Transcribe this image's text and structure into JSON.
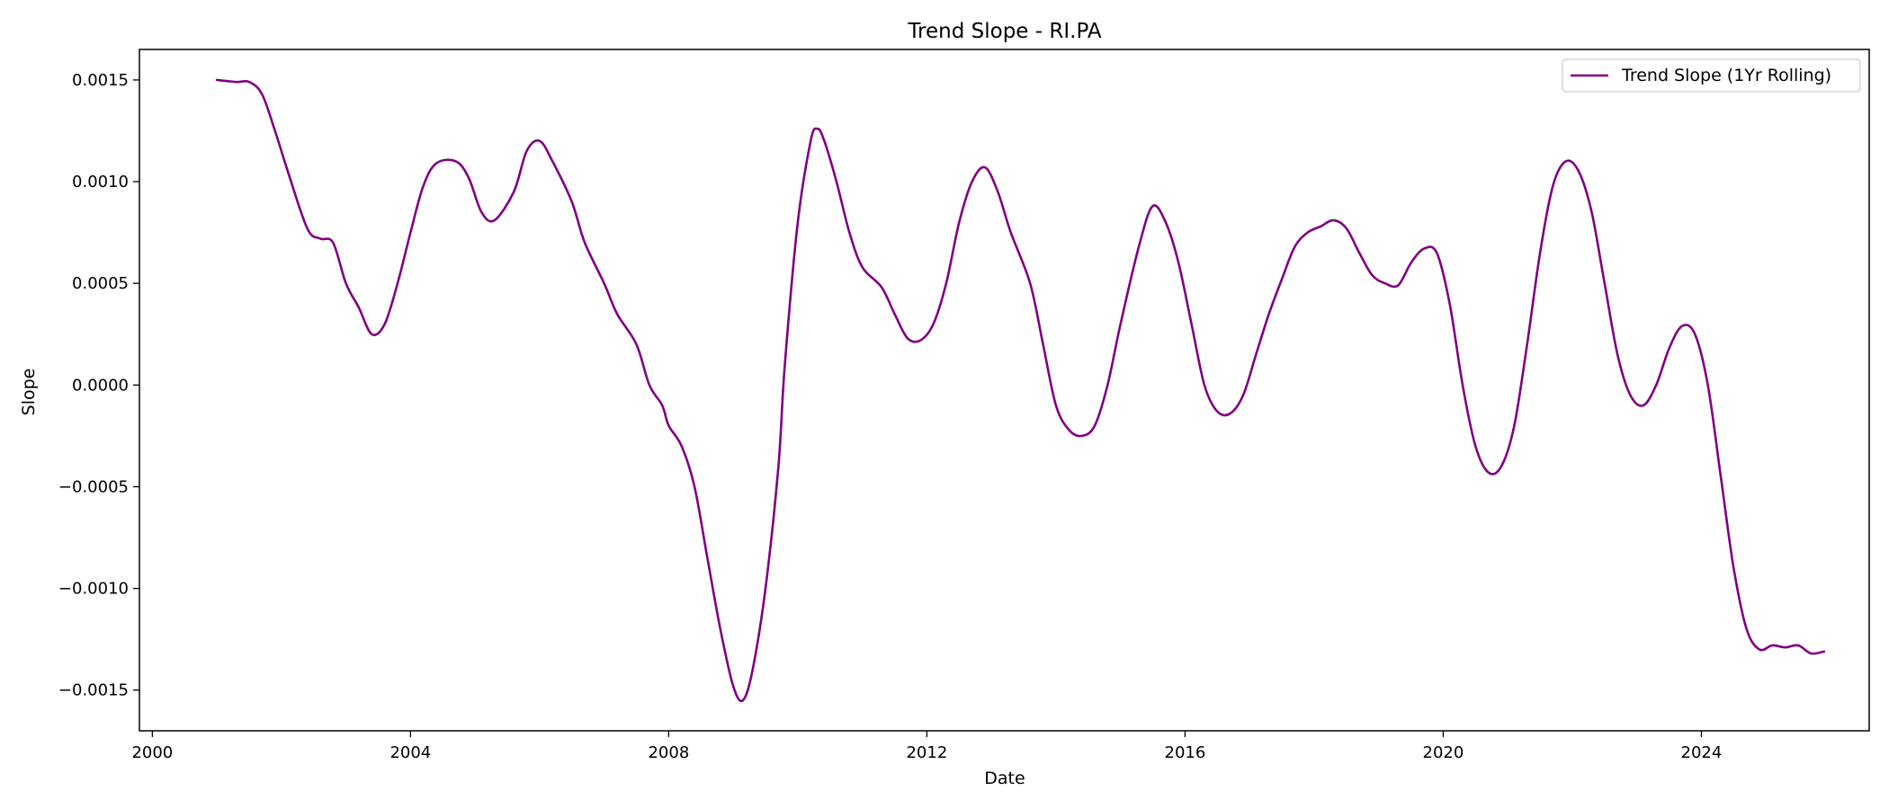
{
  "chart_data": {
    "type": "line",
    "title": "Trend Slope - RI.PA",
    "xlabel": "Date",
    "ylabel": "Slope",
    "xlim": [
      1999.8,
      2026.6
    ],
    "ylim": [
      -0.0017,
      0.00165
    ],
    "x_ticks": [
      {
        "value": 2000,
        "label": "2000"
      },
      {
        "value": 2004,
        "label": "2004"
      },
      {
        "value": 2008,
        "label": "2008"
      },
      {
        "value": 2012,
        "label": "2012"
      },
      {
        "value": 2016,
        "label": "2016"
      },
      {
        "value": 2020,
        "label": "2020"
      },
      {
        "value": 2024,
        "label": "2024"
      }
    ],
    "y_ticks": [
      {
        "value": 0.0015,
        "label": "0.0015"
      },
      {
        "value": 0.001,
        "label": "0.0010"
      },
      {
        "value": 0.0005,
        "label": "0.0005"
      },
      {
        "value": 0.0,
        "label": "0.0000"
      },
      {
        "value": -0.0005,
        "label": "−0.0005"
      },
      {
        "value": -0.001,
        "label": "−0.0010"
      },
      {
        "value": -0.0015,
        "label": "−0.0015"
      }
    ],
    "grid": false,
    "legend_position": "top-right",
    "series": [
      {
        "name": "Trend Slope (1Yr Rolling)",
        "color": "#800080",
        "points": [
          [
            2001.0,
            0.0015
          ],
          [
            2001.3,
            0.00149
          ],
          [
            2001.5,
            0.00149
          ],
          [
            2001.7,
            0.00143
          ],
          [
            2001.9,
            0.00125
          ],
          [
            2002.1,
            0.00105
          ],
          [
            2002.4,
            0.00077
          ],
          [
            2002.6,
            0.00072
          ],
          [
            2002.8,
            0.0007
          ],
          [
            2003.0,
            0.0005
          ],
          [
            2003.2,
            0.00038
          ],
          [
            2003.4,
            0.00025
          ],
          [
            2003.6,
            0.0003
          ],
          [
            2003.8,
            0.0005
          ],
          [
            2004.0,
            0.00075
          ],
          [
            2004.2,
            0.00098
          ],
          [
            2004.4,
            0.00109
          ],
          [
            2004.7,
            0.0011
          ],
          [
            2004.9,
            0.00102
          ],
          [
            2005.1,
            0.00085
          ],
          [
            2005.3,
            0.00081
          ],
          [
            2005.6,
            0.00095
          ],
          [
            2005.8,
            0.00115
          ],
          [
            2006.0,
            0.0012
          ],
          [
            2006.2,
            0.0011
          ],
          [
            2006.5,
            0.0009
          ],
          [
            2006.7,
            0.0007
          ],
          [
            2007.0,
            0.0005
          ],
          [
            2007.2,
            0.00035
          ],
          [
            2007.5,
            0.0002
          ],
          [
            2007.7,
            0.0
          ],
          [
            2007.9,
            -0.0001
          ],
          [
            2008.0,
            -0.0002
          ],
          [
            2008.2,
            -0.0003
          ],
          [
            2008.4,
            -0.0005
          ],
          [
            2008.6,
            -0.00085
          ],
          [
            2008.8,
            -0.0012
          ],
          [
            2009.0,
            -0.00148
          ],
          [
            2009.15,
            -0.00155
          ],
          [
            2009.3,
            -0.0014
          ],
          [
            2009.5,
            -0.001
          ],
          [
            2009.7,
            -0.0004
          ],
          [
            2009.8,
            0.0001
          ],
          [
            2010.0,
            0.0008
          ],
          [
            2010.2,
            0.0012
          ],
          [
            2010.3,
            0.00126
          ],
          [
            2010.4,
            0.00121
          ],
          [
            2010.6,
            0.001
          ],
          [
            2010.8,
            0.00075
          ],
          [
            2011.0,
            0.00058
          ],
          [
            2011.3,
            0.00048
          ],
          [
            2011.5,
            0.00035
          ],
          [
            2011.7,
            0.00023
          ],
          [
            2011.9,
            0.00022
          ],
          [
            2012.1,
            0.0003
          ],
          [
            2012.3,
            0.0005
          ],
          [
            2012.5,
            0.0008
          ],
          [
            2012.7,
            0.001
          ],
          [
            2012.9,
            0.00107
          ],
          [
            2013.1,
            0.00095
          ],
          [
            2013.3,
            0.00075
          ],
          [
            2013.6,
            0.0005
          ],
          [
            2013.8,
            0.0002
          ],
          [
            2014.0,
            -0.0001
          ],
          [
            2014.2,
            -0.00022
          ],
          [
            2014.4,
            -0.00025
          ],
          [
            2014.6,
            -0.0002
          ],
          [
            2014.8,
            0.0
          ],
          [
            2015.0,
            0.0003
          ],
          [
            2015.3,
            0.0007
          ],
          [
            2015.5,
            0.00088
          ],
          [
            2015.7,
            0.0008
          ],
          [
            2015.9,
            0.0006
          ],
          [
            2016.1,
            0.0003
          ],
          [
            2016.3,
            0.0
          ],
          [
            2016.5,
            -0.00013
          ],
          [
            2016.7,
            -0.00014
          ],
          [
            2016.9,
            -5e-05
          ],
          [
            2017.1,
            0.00015
          ],
          [
            2017.3,
            0.00035
          ],
          [
            2017.5,
            0.00052
          ],
          [
            2017.7,
            0.00068
          ],
          [
            2017.9,
            0.00075
          ],
          [
            2018.1,
            0.00078
          ],
          [
            2018.3,
            0.00081
          ],
          [
            2018.5,
            0.00077
          ],
          [
            2018.7,
            0.00065
          ],
          [
            2018.9,
            0.00054
          ],
          [
            2019.1,
            0.0005
          ],
          [
            2019.3,
            0.00049
          ],
          [
            2019.5,
            0.0006
          ],
          [
            2019.7,
            0.00067
          ],
          [
            2019.9,
            0.00065
          ],
          [
            2020.1,
            0.0004
          ],
          [
            2020.3,
            0.0
          ],
          [
            2020.5,
            -0.0003
          ],
          [
            2020.7,
            -0.00043
          ],
          [
            2020.9,
            -0.0004
          ],
          [
            2021.1,
            -0.0002
          ],
          [
            2021.3,
            0.0002
          ],
          [
            2021.5,
            0.00065
          ],
          [
            2021.7,
            0.00098
          ],
          [
            2021.9,
            0.0011
          ],
          [
            2022.1,
            0.00105
          ],
          [
            2022.3,
            0.00085
          ],
          [
            2022.5,
            0.0005
          ],
          [
            2022.7,
            0.00015
          ],
          [
            2022.9,
            -5e-05
          ],
          [
            2023.1,
            -0.0001
          ],
          [
            2023.3,
            0.0
          ],
          [
            2023.5,
            0.00018
          ],
          [
            2023.7,
            0.00029
          ],
          [
            2023.9,
            0.00025
          ],
          [
            2024.1,
            0.0
          ],
          [
            2024.3,
            -0.00045
          ],
          [
            2024.5,
            -0.0009
          ],
          [
            2024.7,
            -0.0012
          ],
          [
            2024.9,
            -0.0013
          ],
          [
            2025.1,
            -0.00128
          ],
          [
            2025.3,
            -0.00129
          ],
          [
            2025.5,
            -0.00128
          ],
          [
            2025.7,
            -0.00132
          ],
          [
            2025.9,
            -0.00131
          ]
        ]
      }
    ]
  }
}
